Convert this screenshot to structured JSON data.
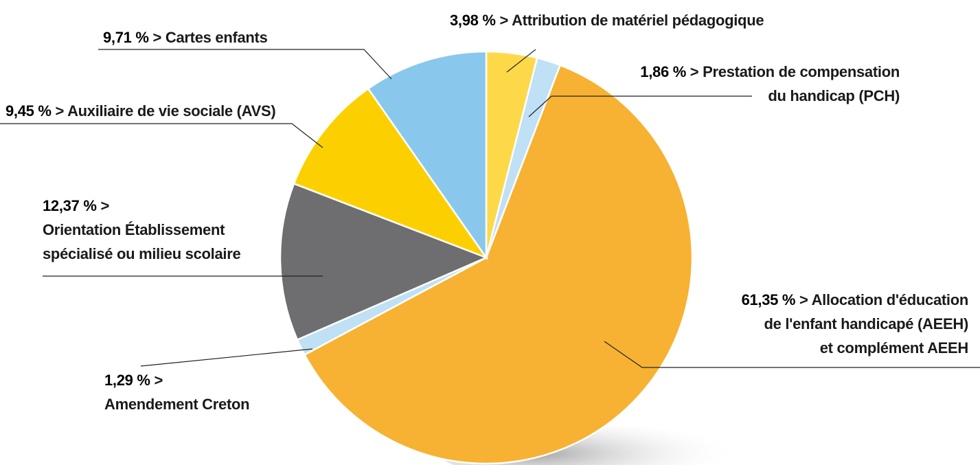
{
  "chart_data": {
    "type": "pie",
    "categories": [
      "Attribution de matériel pédagogique",
      "Prestation de compensation\ndu handicap (PCH)",
      "Allocation d'éducation\nde l'enfant handicapé (AEEH)\net complément AEEH",
      "Amendement Creton",
      "Orientation Établissement\nspécialisé ou milieu scolaire",
      "Auxiliaire de vie sociale (AVS)",
      "Cartes enfants"
    ],
    "values": [
      3.98,
      1.86,
      61.35,
      1.29,
      12.37,
      9.45,
      9.71
    ],
    "value_labels": [
      "3,98 %",
      "1,86 %",
      "61,35 %",
      "1,29 %",
      "12,37 %",
      "9,45 %",
      "9,71 %"
    ],
    "separator": ">",
    "colors": [
      "#fdd94a",
      "#bfe0f5",
      "#f7b233",
      "#bfe0f5",
      "#6e6e70",
      "#fcd000",
      "#89c8ec"
    ]
  }
}
